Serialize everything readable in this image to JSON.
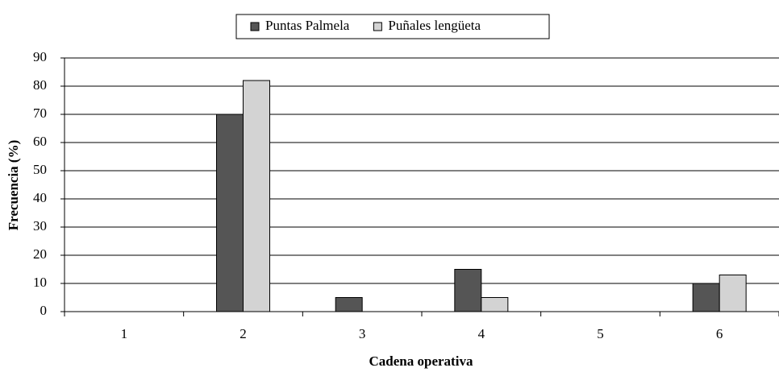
{
  "chart_data": {
    "type": "bar",
    "xlabel": "Cadena operativa",
    "ylabel": "Frecuencia (%)",
    "categories": [
      "1",
      "2",
      "3",
      "4",
      "5",
      "6"
    ],
    "series": [
      {
        "name": "Puntas Palmela",
        "color": "#555555",
        "values": [
          0,
          70,
          5,
          15,
          0,
          10
        ]
      },
      {
        "name": "Puñales lengüeta",
        "color": "#d3d3d3",
        "values": [
          0,
          82,
          0,
          5,
          0,
          13
        ]
      }
    ],
    "ylim": [
      0,
      90
    ],
    "yticks": [
      0,
      10,
      20,
      30,
      40,
      50,
      60,
      70,
      80,
      90
    ],
    "grid": true,
    "legend": "top"
  }
}
